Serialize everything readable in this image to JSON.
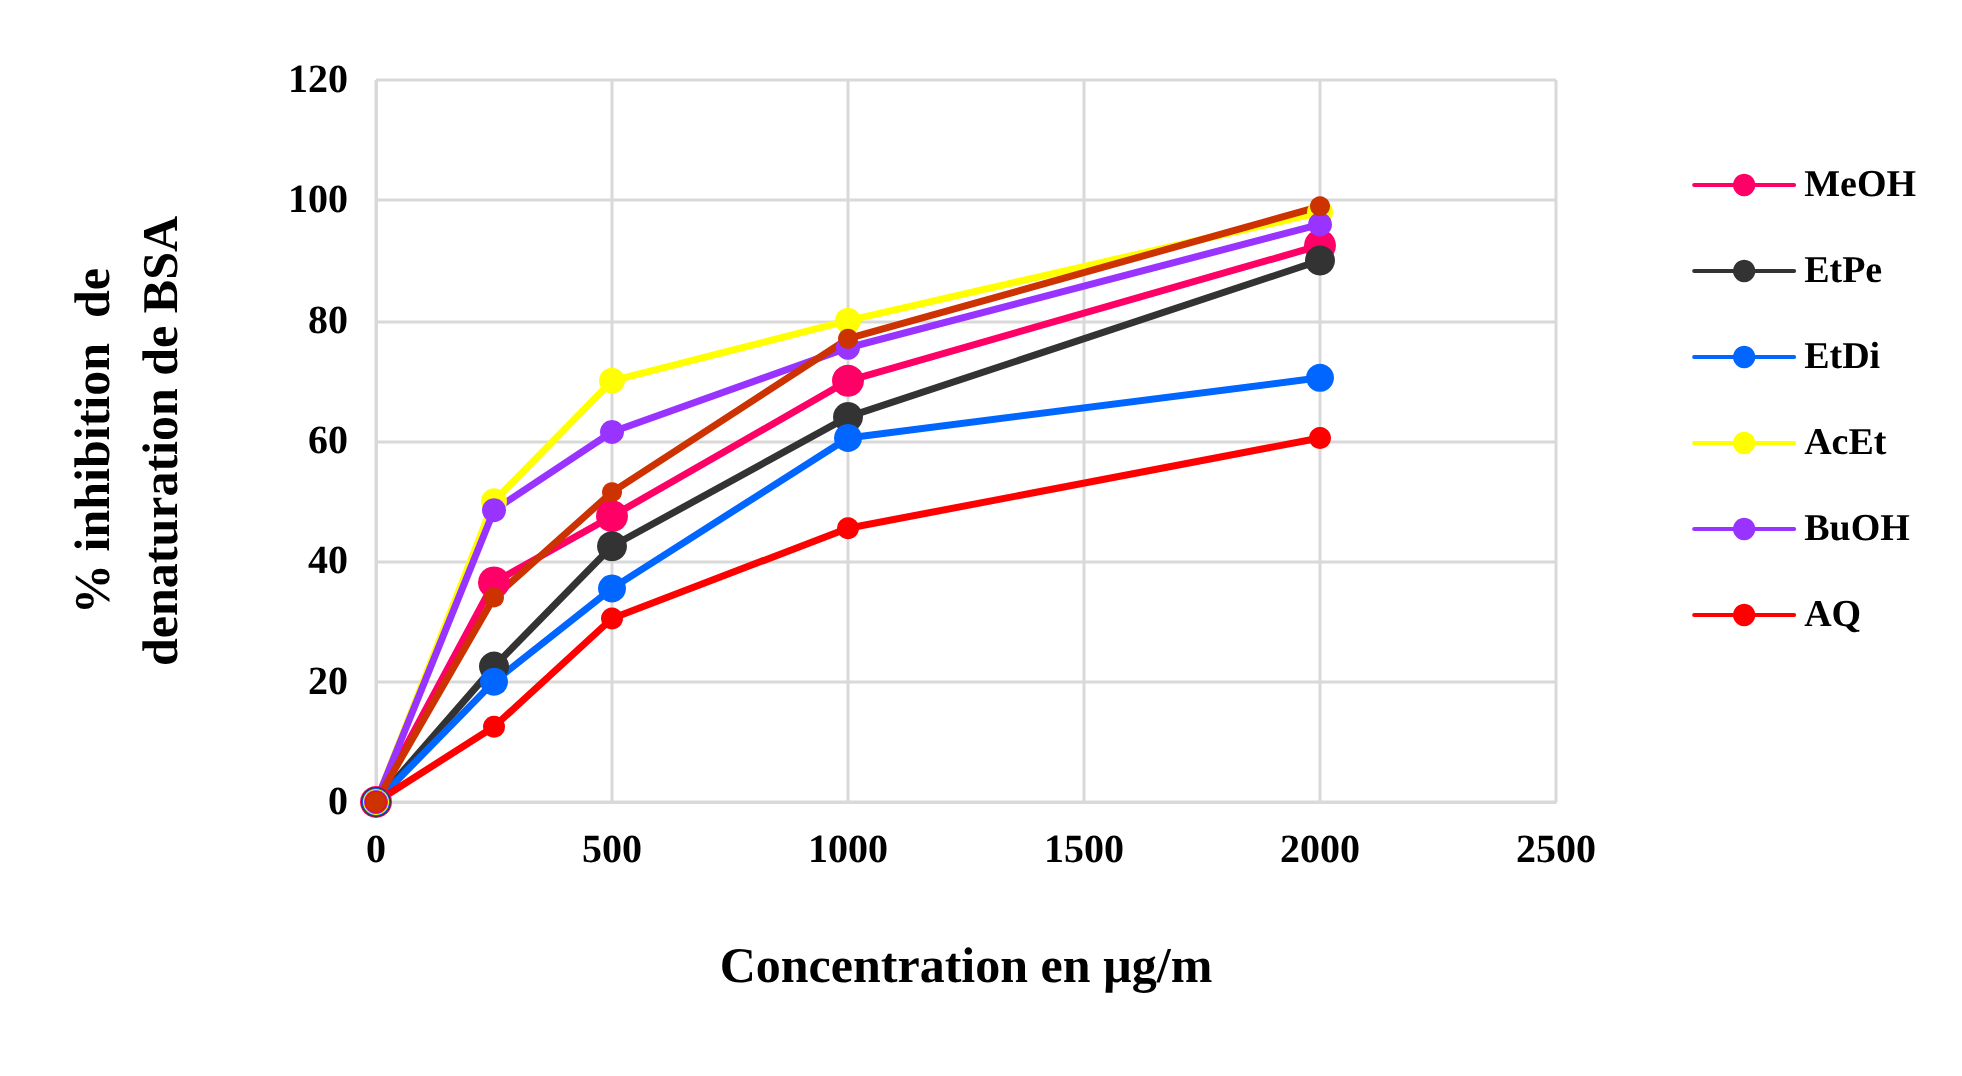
{
  "chart_data": {
    "type": "line",
    "xlabel": "Concentration en µg/m",
    "ylabel": "% inhibition  de\ndenaturation de BSA",
    "x": [
      0,
      250,
      500,
      1000,
      2000
    ],
    "series": [
      {
        "name": "MeOH",
        "color": "#ff0066",
        "values": [
          0,
          36.5,
          47.5,
          70,
          92.5
        ]
      },
      {
        "name": "EtPe",
        "color": "#333333",
        "values": [
          0,
          22.5,
          42.5,
          64,
          90
        ]
      },
      {
        "name": "EtDi",
        "color": "#0066ff",
        "values": [
          0,
          20,
          35.5,
          60.5,
          70.5
        ]
      },
      {
        "name": "AcEt",
        "color": "#ffff00",
        "values": [
          0,
          50,
          70,
          80,
          98
        ]
      },
      {
        "name": "BuOH",
        "color": "#9933ff",
        "values": [
          0,
          48.5,
          61.5,
          75.5,
          96
        ]
      },
      {
        "name": "AQ",
        "color": "#ff0000",
        "values": [
          0,
          12.5,
          30.5,
          45.5,
          60.5
        ]
      },
      {
        "color": "#cc3300",
        "values": [
          0,
          34,
          51.5,
          77,
          99
        ]
      }
    ],
    "xlim": [
      0,
      2500
    ],
    "xticks": [
      0,
      500,
      1000,
      1500,
      2000,
      2500
    ],
    "ylim": [
      0,
      120
    ],
    "yticks": [
      0,
      20,
      40,
      60,
      80,
      100,
      120
    ],
    "grid": true,
    "legend": "right",
    "marker": "circle",
    "line_style": "solid"
  }
}
